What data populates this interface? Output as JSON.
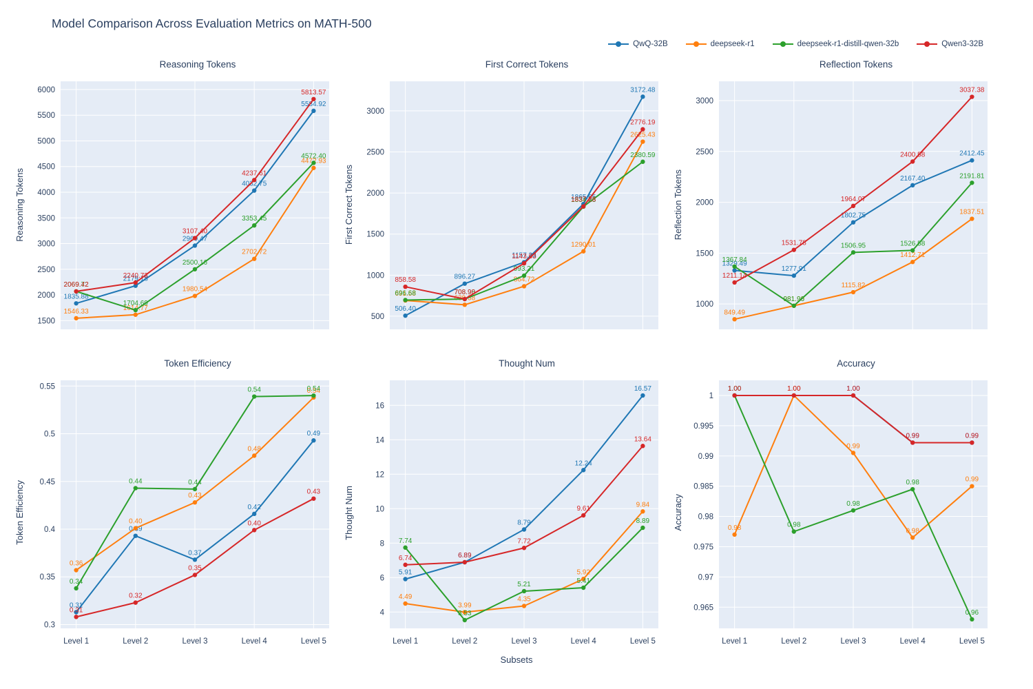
{
  "page": {
    "title": "Model Comparison Across Evaluation Metrics on MATH-500",
    "xaxis_title": "Subsets",
    "x_categories": [
      "Level 1",
      "Level 2",
      "Level 3",
      "Level 4",
      "Level 5"
    ],
    "plot_bg": "#E5ECF6",
    "grid_color": "#ffffff",
    "text_color": "#2a3f5f"
  },
  "legend": {
    "items": [
      {
        "name": "QwQ-32B",
        "color": "#1f77b4"
      },
      {
        "name": "deepseek-r1",
        "color": "#ff7f0e"
      },
      {
        "name": "deepseek-r1-distill-qwen-32b",
        "color": "#2ca02c"
      },
      {
        "name": "Qwen3-32B",
        "color": "#d62728"
      }
    ]
  },
  "chart_data": [
    {
      "type": "line",
      "title": "Reasoning Tokens",
      "ylabel": "Reasoning Tokens",
      "ylim": [
        1330,
        6160
      ],
      "yticks": [
        1500,
        2000,
        2500,
        3000,
        3500,
        4000,
        4500,
        5000,
        5500,
        6000
      ],
      "ytick_labels": [
        "1500",
        "2000",
        "2500",
        "3000",
        "3500",
        "4000",
        "4500",
        "5000",
        "5500",
        "6000"
      ],
      "show_x_ticks": false,
      "series": [
        {
          "name": "QwQ-32B",
          "color": "#1f77b4",
          "values": [
            1835.88,
            2179.18,
            2960.47,
            4032.75,
            5584.92
          ],
          "labels": [
            "1835.88",
            "2179.18",
            "2960.47",
            "4032.75",
            "5584.92"
          ]
        },
        {
          "name": "deepseek-r1",
          "color": "#ff7f0e",
          "values": [
            1546.33,
            1614.77,
            1980.54,
            2702.72,
            4472.93
          ],
          "labels": [
            "1546.33",
            "1614.77",
            "1980.54",
            "2702.72",
            "4472.93"
          ]
        },
        {
          "name": "deepseek-r1-distill-qwen-32b",
          "color": "#2ca02c",
          "values": [
            2069.72,
            1704.69,
            2500.16,
            3353.45,
            4572.4
          ],
          "labels": [
            "2069.72",
            "1704.69",
            "2500.16",
            "3353.45",
            "4572.40"
          ]
        },
        {
          "name": "Qwen3-32B",
          "color": "#d62728",
          "values": [
            2069.42,
            2240.73,
            3107.4,
            4237.61,
            5813.57
          ],
          "labels": [
            "2069.42",
            "2240.73",
            "3107.40",
            "4237.61",
            "5813.57"
          ]
        }
      ]
    },
    {
      "type": "line",
      "title": "First Correct Tokens",
      "ylabel": "First Correct Tokens",
      "ylim": [
        340,
        3360
      ],
      "yticks": [
        500,
        1000,
        1500,
        2000,
        2500,
        3000
      ],
      "ytick_labels": [
        "500",
        "1000",
        "1500",
        "2000",
        "2500",
        "3000"
      ],
      "show_x_ticks": false,
      "series": [
        {
          "name": "QwQ-32B",
          "color": "#1f77b4",
          "values": [
            506.4,
            896.27,
            1157.33,
            1865.65,
            3172.48
          ],
          "labels": [
            "506.40",
            "896.27",
            "1157.33",
            "1865.65",
            "3172.48"
          ]
        },
        {
          "name": "deepseek-r1",
          "color": "#ff7f0e",
          "values": [
            691.58,
            639.38,
            864.72,
            1290.01,
            2625.43
          ],
          "labels": [
            "691.58",
            "639.38",
            "864.72",
            "1290.01",
            "2625.43"
          ]
        },
        {
          "name": "deepseek-r1-distill-qwen-32b",
          "color": "#2ca02c",
          "values": [
            696.68,
            708.98,
            993.21,
            1834.23,
            2380.59
          ],
          "labels": [
            "696.68",
            "708.98",
            "993.21",
            "1834.23",
            "2380.59"
          ]
        },
        {
          "name": "Qwen3-32B",
          "color": "#d62728",
          "values": [
            858.58,
            708.9,
            1143.63,
            1837.28,
            2776.19
          ],
          "labels": [
            "858.58",
            "708.90",
            "1143.63",
            "1837.28",
            "2776.19"
          ]
        }
      ]
    },
    {
      "type": "line",
      "title": "Reflection Tokens",
      "ylabel": "Reflection Tokens",
      "ylim": [
        750,
        3190
      ],
      "yticks": [
        1000,
        1500,
        2000,
        2500,
        3000
      ],
      "ytick_labels": [
        "1000",
        "1500",
        "2000",
        "2500",
        "3000"
      ],
      "show_x_ticks": false,
      "series": [
        {
          "name": "QwQ-32B",
          "color": "#1f77b4",
          "values": [
            1329.49,
            1277.91,
            1802.75,
            2167.4,
            2412.45
          ],
          "labels": [
            "1329.49",
            "1277.91",
            "1802.75",
            "2167.40",
            "2412.45"
          ]
        },
        {
          "name": "deepseek-r1",
          "color": "#ff7f0e",
          "values": [
            849.49,
            981.9,
            1115.82,
            1412.71,
            1837.51
          ],
          "labels": [
            "849.49",
            "981.90",
            "1115.82",
            "1412.71",
            "1837.51"
          ]
        },
        {
          "name": "deepseek-r1-distill-qwen-32b",
          "color": "#2ca02c",
          "values": [
            1367.84,
            981.96,
            1506.95,
            1526.58,
            2191.81
          ],
          "labels": [
            "1367.84",
            "981.96",
            "1506.95",
            "1526.58",
            "2191.81"
          ]
        },
        {
          "name": "Qwen3-32B",
          "color": "#d62728",
          "values": [
            1211.14,
            1531.78,
            1964.07,
            2400.58,
            3037.38
          ],
          "labels": [
            "1211.14",
            "1531.78",
            "1964.07",
            "2400.58",
            "3037.38"
          ]
        }
      ]
    },
    {
      "type": "line",
      "title": "Token Efficiency",
      "ylabel": "Token Efficiency",
      "ylim": [
        0.296,
        0.556
      ],
      "yticks": [
        0.3,
        0.35,
        0.4,
        0.45,
        0.5,
        0.55
      ],
      "ytick_labels": [
        "0.3",
        "0.35",
        "0.4",
        "0.45",
        "0.5",
        "0.55"
      ],
      "show_x_ticks": true,
      "series": [
        {
          "name": "QwQ-32B",
          "color": "#1f77b4",
          "values": [
            0.313,
            0.393,
            0.368,
            0.416,
            0.493
          ],
          "labels": [
            "0.31",
            "0.39",
            "0.37",
            "0.42",
            "0.49"
          ]
        },
        {
          "name": "deepseek-r1",
          "color": "#ff7f0e",
          "values": [
            0.357,
            0.401,
            0.428,
            0.477,
            0.538
          ],
          "labels": [
            "0.36",
            "0.40",
            "0.43",
            "0.48",
            "0.54"
          ]
        },
        {
          "name": "deepseek-r1-distill-qwen-32b",
          "color": "#2ca02c",
          "values": [
            0.338,
            0.443,
            0.442,
            0.539,
            0.54
          ],
          "labels": [
            "0.34",
            "0.44",
            "0.44",
            "0.54",
            "0.54"
          ]
        },
        {
          "name": "Qwen3-32B",
          "color": "#d62728",
          "values": [
            0.308,
            0.323,
            0.352,
            0.399,
            0.432
          ],
          "labels": [
            "0.31",
            "0.32",
            "0.35",
            "0.40",
            "0.43"
          ]
        }
      ]
    },
    {
      "type": "line",
      "title": "Thought Num",
      "ylabel": "Thought Num",
      "ylim": [
        3.05,
        17.45
      ],
      "yticks": [
        4,
        6,
        8,
        10,
        12,
        14,
        16
      ],
      "ytick_labels": [
        "4",
        "6",
        "8",
        "10",
        "12",
        "14",
        "16"
      ],
      "show_x_ticks": true,
      "series": [
        {
          "name": "QwQ-32B",
          "color": "#1f77b4",
          "values": [
            5.91,
            6.89,
            8.79,
            12.24,
            16.57
          ],
          "labels": [
            "5.91",
            "6.89",
            "8.79",
            "12.24",
            "16.57"
          ]
        },
        {
          "name": "deepseek-r1",
          "color": "#ff7f0e",
          "values": [
            4.49,
            3.99,
            4.35,
            5.92,
            9.84
          ],
          "labels": [
            "4.49",
            "3.99",
            "4.35",
            "5.92",
            "9.84"
          ]
        },
        {
          "name": "deepseek-r1-distill-qwen-32b",
          "color": "#2ca02c",
          "values": [
            7.74,
            3.53,
            5.21,
            5.41,
            8.89
          ],
          "labels": [
            "7.74",
            "3.53",
            "5.21",
            "5.41",
            "8.89"
          ]
        },
        {
          "name": "Qwen3-32B",
          "color": "#d62728",
          "values": [
            6.74,
            6.89,
            7.72,
            9.61,
            13.64
          ],
          "labels": [
            "6.74",
            "6.89",
            "7.72",
            "9.61",
            "13.64"
          ]
        }
      ]
    },
    {
      "type": "line",
      "title": "Accuracy",
      "ylabel": "Accuracy",
      "ylim": [
        0.9615,
        1.0025
      ],
      "yticks": [
        0.965,
        0.97,
        0.975,
        0.98,
        0.985,
        0.99,
        0.995,
        1
      ],
      "ytick_labels": [
        "0.965",
        "0.97",
        "0.975",
        "0.98",
        "0.985",
        "0.99",
        "0.995",
        "1"
      ],
      "show_x_ticks": true,
      "series": [
        {
          "name": "QwQ-32B",
          "color": "#1f77b4",
          "values": [
            1.0,
            1.0,
            1.0,
            0.9922,
            0.9922
          ],
          "labels": [
            "1.00",
            "1.00",
            "1.00",
            "0.99",
            "0.99"
          ]
        },
        {
          "name": "deepseek-r1",
          "color": "#ff7f0e",
          "values": [
            0.977,
            1.0,
            0.9905,
            0.9765,
            0.985
          ],
          "labels": [
            "0.98",
            "1.00",
            "0.99",
            "0.98",
            "0.99"
          ]
        },
        {
          "name": "deepseek-r1-distill-qwen-32b",
          "color": "#2ca02c",
          "values": [
            1.0,
            0.9775,
            0.981,
            0.9845,
            0.963
          ],
          "labels": [
            "1.00",
            "0.98",
            "0.98",
            "0.98",
            "0.96"
          ]
        },
        {
          "name": "Qwen3-32B",
          "color": "#d62728",
          "values": [
            1.0,
            1.0,
            1.0,
            0.9922,
            0.9922
          ],
          "labels": [
            "1.00",
            "1.00",
            "1.00",
            "0.99",
            "0.99"
          ]
        }
      ]
    }
  ]
}
